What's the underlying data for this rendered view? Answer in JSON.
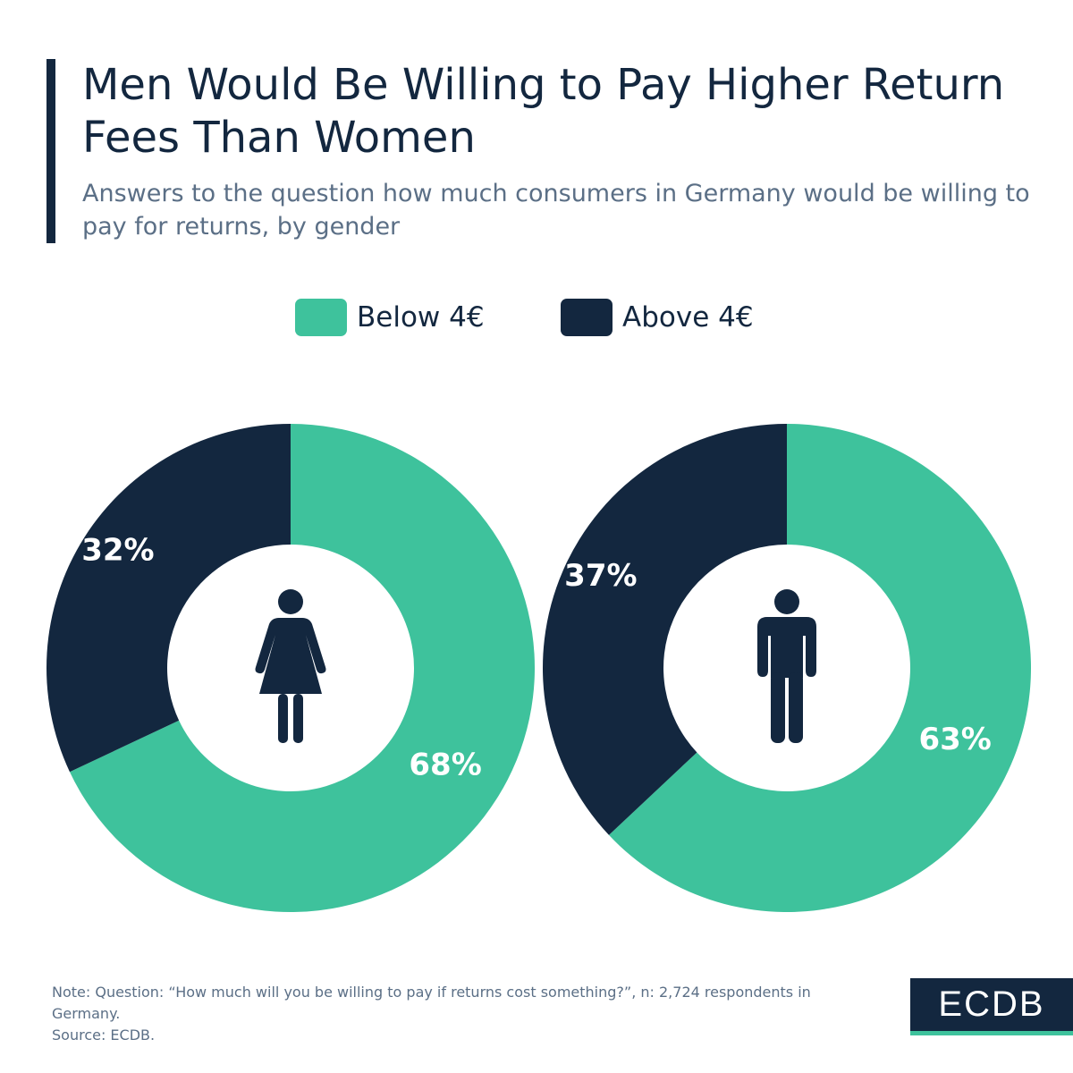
{
  "header": {
    "title": "Men Would Be Willing to Pay Higher Return Fees Than Women",
    "subtitle": "Answers to the question how much consumers in Germany would be willing to pay for returns, by gender"
  },
  "colors": {
    "below": "#3ec29c",
    "above": "#13273f",
    "accent": "#13273f"
  },
  "chart_data": [
    {
      "type": "pie",
      "group": "women",
      "icon": "woman-icon",
      "series": [
        {
          "name": "Below 4€",
          "value": 68,
          "label": "68%"
        },
        {
          "name": "Above 4€",
          "value": 32,
          "label": "32%"
        }
      ],
      "legend": [
        "Below 4€",
        "Above 4€"
      ],
      "legend_position": "top-center"
    },
    {
      "type": "pie",
      "group": "men",
      "icon": "man-icon",
      "series": [
        {
          "name": "Below 4€",
          "value": 63,
          "label": "63%"
        },
        {
          "name": "Above 4€",
          "value": 37,
          "label": "37%"
        }
      ],
      "legend": [
        "Below 4€",
        "Above 4€"
      ],
      "legend_position": "top-center"
    }
  ],
  "legend": {
    "below_label": "Below 4€",
    "above_label": "Above 4€"
  },
  "footer": {
    "note": "Note: Question: “How much will you be willing to pay if returns cost something?”, n: 2,724 respondents in Germany.",
    "source": "Source: ECDB.",
    "logo_text": "ECDB"
  }
}
